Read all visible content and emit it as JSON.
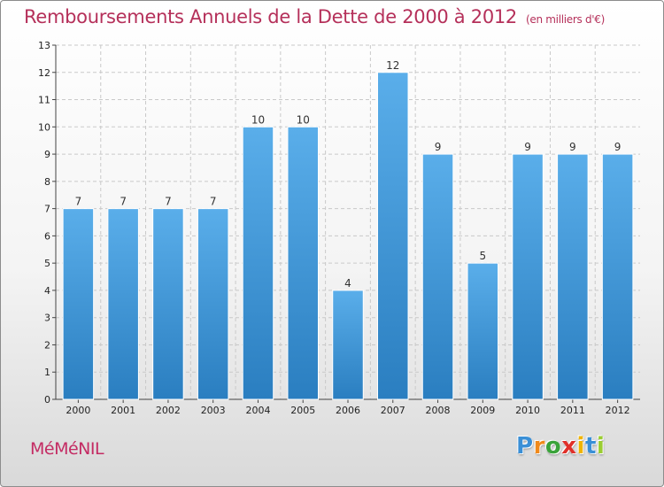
{
  "title": "Remboursements Annuels de la Dette de 2000 à 2012",
  "title_unit": "(en milliers d'€)",
  "commune": "MéMéNIL",
  "logo": {
    "letters": [
      "P",
      "r",
      "o",
      "x",
      "i",
      "t",
      "i"
    ],
    "colors": [
      "#3a8fd6",
      "#f08a1c",
      "#3aa33a",
      "#e0302a",
      "#f0b400",
      "#3a8fd6",
      "#9acd32"
    ]
  },
  "colors": {
    "bar_light": "#5aaeea",
    "bar_dark": "#2a7ec0",
    "title": "#b5305a"
  },
  "chart_data": {
    "type": "bar",
    "title": "Remboursements Annuels de la Dette de 2000 à 2012",
    "categories": [
      "2000",
      "2001",
      "2002",
      "2003",
      "2004",
      "2005",
      "2006",
      "2007",
      "2008",
      "2009",
      "2010",
      "2011",
      "2012"
    ],
    "values": [
      7,
      7,
      7,
      7,
      10,
      10,
      4,
      12,
      9,
      5,
      9,
      9,
      9
    ],
    "data_labels": [
      "7",
      "7",
      "7",
      "7",
      "10",
      "10",
      "4",
      "12",
      "9",
      "5",
      "9",
      "9",
      "9"
    ],
    "yticks": [
      "0",
      "1",
      "2",
      "3",
      "4",
      "5",
      "6",
      "7",
      "8",
      "9",
      "10",
      "11",
      "12",
      "13"
    ],
    "ylim": [
      0,
      13
    ],
    "grid": true,
    "xlabel": "",
    "ylabel": ""
  }
}
